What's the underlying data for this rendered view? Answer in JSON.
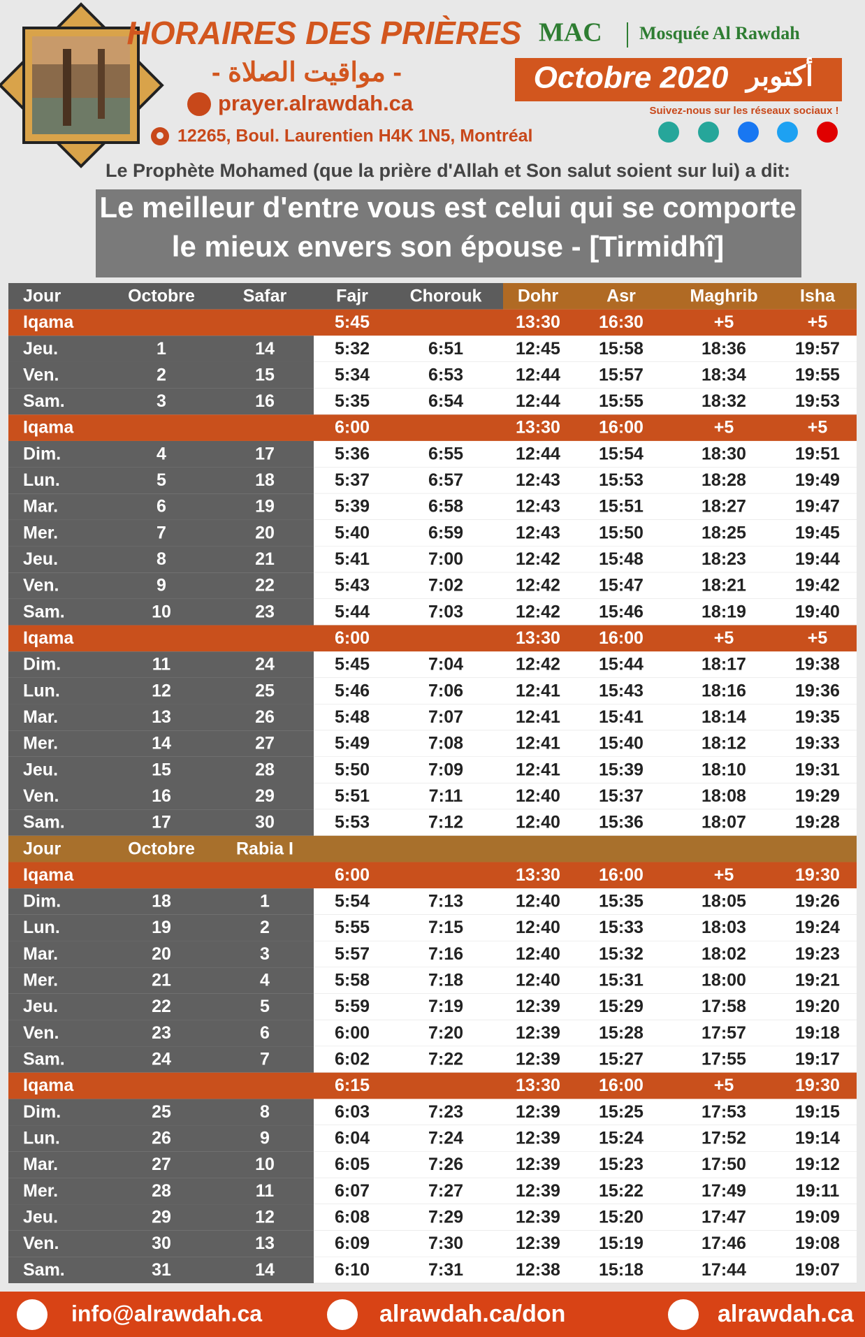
{
  "header": {
    "title": "HORAIRES DES PRIÈRES",
    "title_ar": "- مواقيت الصلاة -",
    "website": "prayer.alrawdah.ca",
    "address": "12265, Boul. Laurentien H4K 1N5,  Montréal",
    "logo": "MAC",
    "mosque": "Mosquée Al Rawdah",
    "month": "Octobre 2020",
    "month_ar": "أكتوبر",
    "social": "Suivez-nous sur les réseaux sociaux !"
  },
  "quote": {
    "intro": "Le Prophète Mohamed (que la prière d'Allah et Son salut soient sur lui) a dit:",
    "lines": [
      "Le meilleur d'entre vous est celui qui se comporte",
      "le mieux envers son épouse - [Tirmidhî]"
    ]
  },
  "table": {
    "rows": [
      {
        "header": [
          "Jour",
          "Octobre",
          "Safar",
          "Fajr",
          "Chorouk",
          "Dohr",
          "Asr",
          "Maghrib",
          "Isha"
        ]
      },
      {
        "iqama": [
          "Iqama",
          null,
          null,
          "5:45",
          null,
          "13:30",
          "16:30",
          "+5",
          "+5"
        ]
      },
      {
        "day": [
          "Jeu.",
          "1",
          "14",
          "5:32",
          "6:51",
          "12:45",
          "15:58",
          "18:36",
          "19:57"
        ]
      },
      {
        "day": [
          "Ven.",
          "2",
          "15",
          "5:34",
          "6:53",
          "12:44",
          "15:57",
          "18:34",
          "19:55"
        ]
      },
      {
        "day": [
          "Sam.",
          "3",
          "16",
          "5:35",
          "6:54",
          "12:44",
          "15:55",
          "18:32",
          "19:53"
        ]
      },
      {
        "iqama": [
          "Iqama",
          null,
          null,
          "6:00",
          null,
          "13:30",
          "16:00",
          "+5",
          "+5"
        ]
      },
      {
        "day": [
          "Dim.",
          "4",
          "17",
          "5:36",
          "6:55",
          "12:44",
          "15:54",
          "18:30",
          "19:51"
        ]
      },
      {
        "day": [
          "Lun.",
          "5",
          "18",
          "5:37",
          "6:57",
          "12:43",
          "15:53",
          "18:28",
          "19:49"
        ]
      },
      {
        "day": [
          "Mar.",
          "6",
          "19",
          "5:39",
          "6:58",
          "12:43",
          "15:51",
          "18:27",
          "19:47"
        ]
      },
      {
        "day": [
          "Mer.",
          "7",
          "20",
          "5:40",
          "6:59",
          "12:43",
          "15:50",
          "18:25",
          "19:45"
        ]
      },
      {
        "day": [
          "Jeu.",
          "8",
          "21",
          "5:41",
          "7:00",
          "12:42",
          "15:48",
          "18:23",
          "19:44"
        ]
      },
      {
        "day": [
          "Ven.",
          "9",
          "22",
          "5:43",
          "7:02",
          "12:42",
          "15:47",
          "18:21",
          "19:42"
        ]
      },
      {
        "day": [
          "Sam.",
          "10",
          "23",
          "5:44",
          "7:03",
          "12:42",
          "15:46",
          "18:19",
          "19:40"
        ]
      },
      {
        "iqama": [
          "Iqama",
          null,
          null,
          "6:00",
          null,
          "13:30",
          "16:00",
          "+5",
          "+5"
        ]
      },
      {
        "day": [
          "Dim.",
          "11",
          "24",
          "5:45",
          "7:04",
          "12:42",
          "15:44",
          "18:17",
          "19:38"
        ]
      },
      {
        "day": [
          "Lun.",
          "12",
          "25",
          "5:46",
          "7:06",
          "12:41",
          "15:43",
          "18:16",
          "19:36"
        ]
      },
      {
        "day": [
          "Mar.",
          "13",
          "26",
          "5:48",
          "7:07",
          "12:41",
          "15:41",
          "18:14",
          "19:35"
        ]
      },
      {
        "day": [
          "Mer.",
          "14",
          "27",
          "5:49",
          "7:08",
          "12:41",
          "15:40",
          "18:12",
          "19:33"
        ]
      },
      {
        "day": [
          "Jeu.",
          "15",
          "28",
          "5:50",
          "7:09",
          "12:41",
          "15:39",
          "18:10",
          "19:31"
        ]
      },
      {
        "day": [
          "Ven.",
          "16",
          "29",
          "5:51",
          "7:11",
          "12:40",
          "15:37",
          "18:08",
          "19:29"
        ]
      },
      {
        "day": [
          "Sam.",
          "17",
          "30",
          "5:53",
          "7:12",
          "12:40",
          "15:36",
          "18:07",
          "19:28"
        ]
      },
      {
        "header2": [
          "Jour",
          "Octobre",
          "Rabia I"
        ]
      },
      {
        "iqama": [
          "Iqama",
          null,
          null,
          "6:00",
          null,
          "13:30",
          "16:00",
          "+5",
          "19:30"
        ]
      },
      {
        "day": [
          "Dim.",
          "18",
          "1",
          "5:54",
          "7:13",
          "12:40",
          "15:35",
          "18:05",
          "19:26"
        ]
      },
      {
        "day": [
          "Lun.",
          "19",
          "2",
          "5:55",
          "7:15",
          "12:40",
          "15:33",
          "18:03",
          "19:24"
        ]
      },
      {
        "day": [
          "Mar.",
          "20",
          "3",
          "5:57",
          "7:16",
          "12:40",
          "15:32",
          "18:02",
          "19:23"
        ]
      },
      {
        "day": [
          "Mer.",
          "21",
          "4",
          "5:58",
          "7:18",
          "12:40",
          "15:31",
          "18:00",
          "19:21"
        ]
      },
      {
        "day": [
          "Jeu.",
          "22",
          "5",
          "5:59",
          "7:19",
          "12:39",
          "15:29",
          "17:58",
          "19:20"
        ]
      },
      {
        "day": [
          "Ven.",
          "23",
          "6",
          "6:00",
          "7:20",
          "12:39",
          "15:28",
          "17:57",
          "19:18"
        ]
      },
      {
        "day": [
          "Sam.",
          "24",
          "7",
          "6:02",
          "7:22",
          "12:39",
          "15:27",
          "17:55",
          "19:17"
        ]
      },
      {
        "iqama": [
          "Iqama",
          null,
          null,
          "6:15",
          null,
          "13:30",
          "16:00",
          "+5",
          "19:30"
        ]
      },
      {
        "day": [
          "Dim.",
          "25",
          "8",
          "6:03",
          "7:23",
          "12:39",
          "15:25",
          "17:53",
          "19:15"
        ]
      },
      {
        "day": [
          "Lun.",
          "26",
          "9",
          "6:04",
          "7:24",
          "12:39",
          "15:24",
          "17:52",
          "19:14"
        ]
      },
      {
        "day": [
          "Mar.",
          "27",
          "10",
          "6:05",
          "7:26",
          "12:39",
          "15:23",
          "17:50",
          "19:12"
        ]
      },
      {
        "day": [
          "Mer.",
          "28",
          "11",
          "6:07",
          "7:27",
          "12:39",
          "15:22",
          "17:49",
          "19:11"
        ]
      },
      {
        "day": [
          "Jeu.",
          "29",
          "12",
          "6:08",
          "7:29",
          "12:39",
          "15:20",
          "17:47",
          "19:09"
        ]
      },
      {
        "day": [
          "Ven.",
          "30",
          "13",
          "6:09",
          "7:30",
          "12:39",
          "15:19",
          "17:46",
          "19:08"
        ]
      },
      {
        "day": [
          "Sam.",
          "31",
          "14",
          "6:10",
          "7:31",
          "12:38",
          "15:18",
          "17:44",
          "19:07"
        ]
      }
    ]
  },
  "footer": {
    "email": "info@alrawdah.ca",
    "donate": "alrawdah.ca/don",
    "site": "alrawdah.ca"
  }
}
